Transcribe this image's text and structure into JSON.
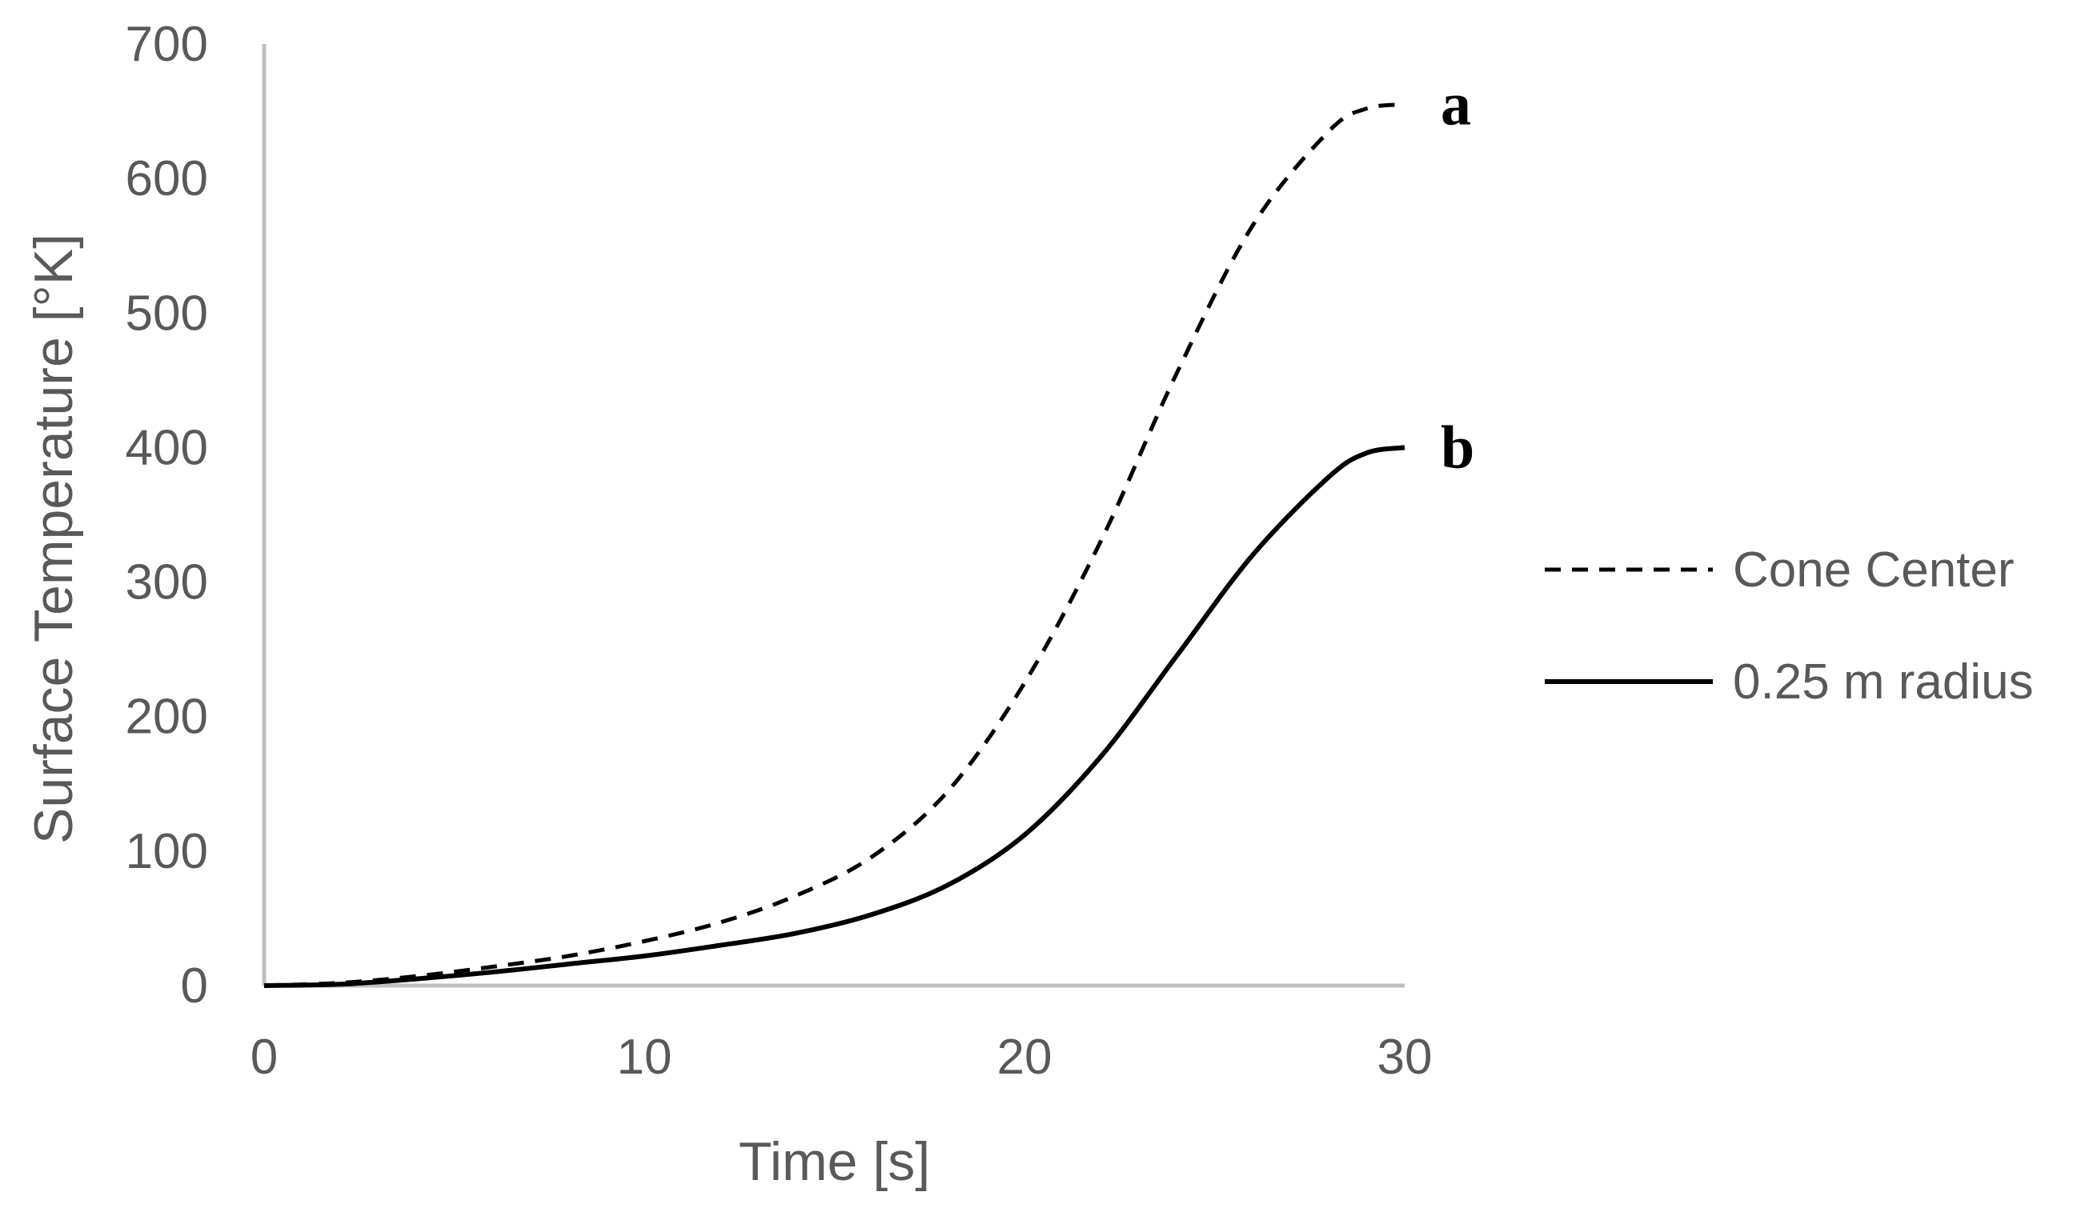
{
  "chart_data": {
    "type": "line",
    "title": "",
    "xlabel": "Time [s]",
    "ylabel": "Surface Temperature  [°K]",
    "xlim": [
      0,
      30
    ],
    "ylim": [
      0,
      700
    ],
    "xticks": [
      "0",
      "10",
      "20",
      "30"
    ],
    "yticks": [
      "0",
      "100",
      "200",
      "300",
      "400",
      "500",
      "600",
      "700"
    ],
    "grid": false,
    "legend_position": "right",
    "x": [
      0,
      2,
      4,
      6,
      8,
      10,
      12,
      14,
      16,
      18,
      20,
      22,
      24,
      26,
      28,
      29,
      30
    ],
    "series": [
      {
        "name": "Cone Center",
        "style": "dashed",
        "color": "#000000",
        "values": [
          0,
          2,
          7,
          14,
          22,
          33,
          47,
          67,
          96,
          145,
          225,
          330,
          455,
          565,
          635,
          652,
          655
        ]
      },
      {
        "name": "0.25 m radius",
        "style": "solid",
        "color": "#000000",
        "values": [
          0,
          1,
          5,
          10,
          16,
          22,
          30,
          39,
          53,
          75,
          112,
          170,
          245,
          320,
          378,
          396,
          400
        ]
      }
    ],
    "annotations": [
      {
        "text": "a",
        "series": 0
      },
      {
        "text": "b",
        "series": 1
      }
    ]
  }
}
